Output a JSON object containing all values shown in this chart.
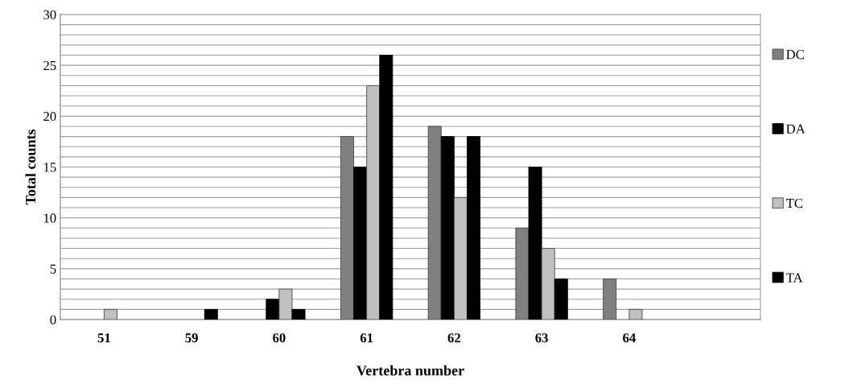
{
  "chart_data": {
    "type": "bar",
    "xlabel": "Vertebra number",
    "ylabel": "Total counts",
    "categories": [
      "51",
      "59",
      "60",
      "61",
      "62",
      "63",
      "64",
      null
    ],
    "series": [
      {
        "name": "DC",
        "color": "#808080",
        "values": [
          0,
          0,
          0,
          18,
          19,
          9,
          4,
          null
        ]
      },
      {
        "name": "DA",
        "color": "#000000",
        "values": [
          0,
          0,
          2,
          15,
          18,
          15,
          0,
          null
        ]
      },
      {
        "name": "TC",
        "color": "#c0c0c0",
        "values": [
          1,
          0,
          3,
          23,
          12,
          7,
          1,
          null
        ]
      },
      {
        "name": "TA",
        "color": "#000000",
        "values": [
          0,
          1,
          1,
          26,
          18,
          4,
          0,
          null
        ]
      }
    ],
    "ylim": [
      0,
      30
    ],
    "yticks": [
      0,
      {
        "value": 1,
        "label": null
      },
      {
        "value": 2,
        "label": null
      },
      {
        "value": 3,
        "label": null
      },
      {
        "value": 4,
        "label": null
      },
      5,
      {
        "value": 6,
        "label": null
      },
      {
        "value": 7,
        "label": null
      },
      {
        "value": 8,
        "label": null
      },
      {
        "value": 9,
        "label": null
      },
      10,
      {
        "value": 11,
        "label": null
      },
      {
        "value": 12,
        "label": null
      },
      {
        "value": 13,
        "label": null
      },
      {
        "value": 14,
        "label": null
      },
      15,
      {
        "value": 16,
        "label": null
      },
      {
        "value": 17,
        "label": null
      },
      {
        "value": 18,
        "label": null
      },
      {
        "value": 19,
        "label": null
      },
      20,
      {
        "value": 21,
        "label": null
      },
      {
        "value": 22,
        "label": null
      },
      {
        "value": 23,
        "label": null
      },
      {
        "value": 24,
        "label": null
      },
      25,
      {
        "value": 26,
        "label": null
      },
      {
        "value": 27,
        "label": null
      },
      {
        "value": 28,
        "label": null
      },
      {
        "value": 29,
        "label": null
      },
      30
    ],
    "grid": "y",
    "legend": "right"
  }
}
